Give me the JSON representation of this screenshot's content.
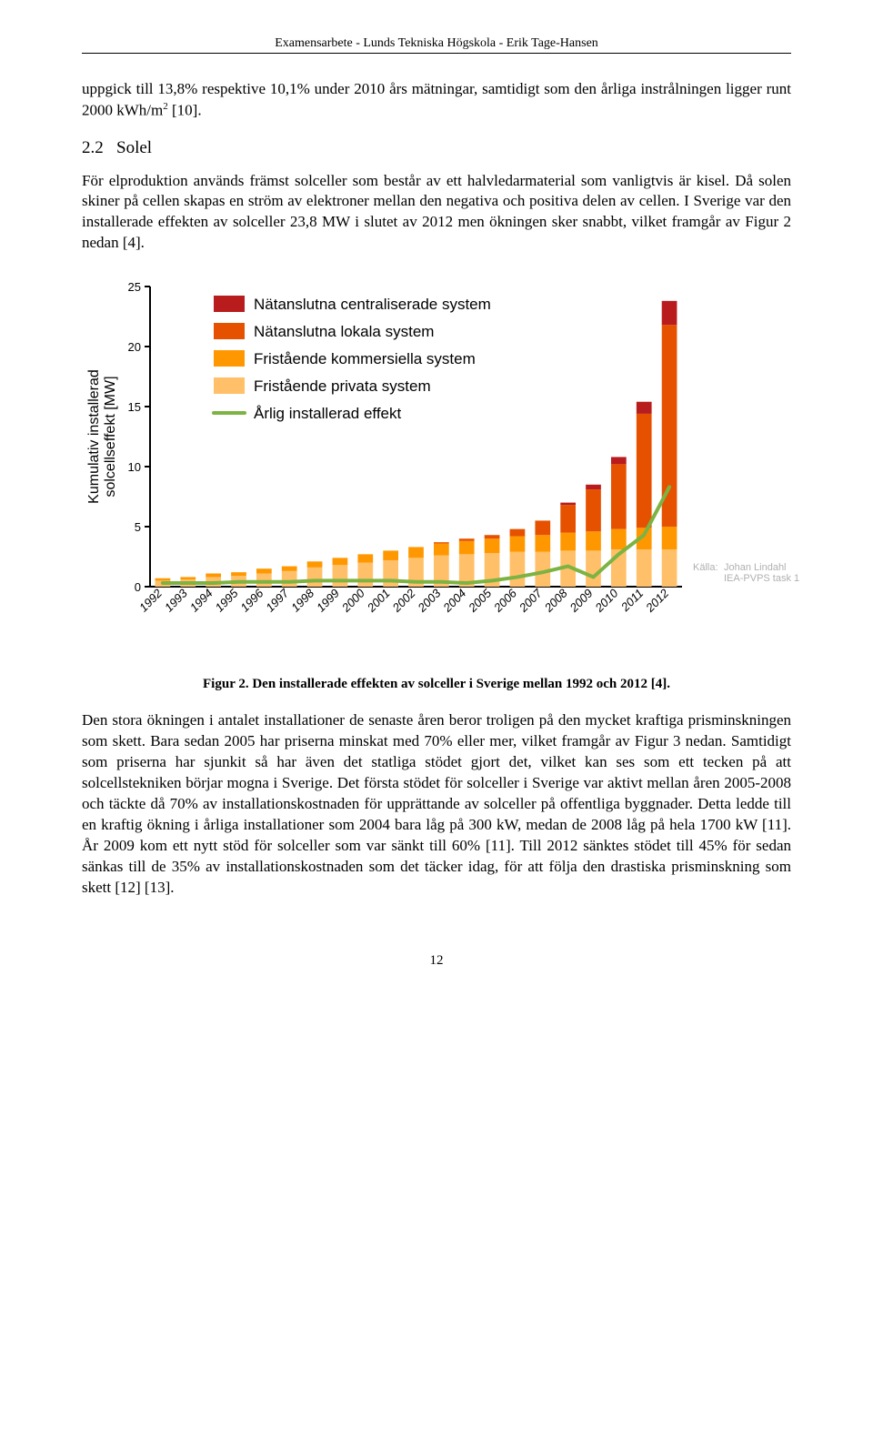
{
  "header": "Examensarbete - Lunds Tekniska Högskola - Erik Tage-Hansen",
  "para1_a": "uppgick till 13,8% respektive 10,1% under 2010 års mätningar, samtidigt som den årliga instrålningen ligger runt 2000 kWh/m",
  "para1_sup": "2",
  "para1_b": " [10].",
  "section_num": "2.2",
  "section_title": "Solel",
  "para2": "För elproduktion används främst solceller som består av ett halvledarmaterial som vanligtvis är kisel. Då solen skiner på cellen skapas en ström av elektroner mellan den negativa och positiva delen av cellen. I Sverige var den installerade effekten av solceller 23,8 MW i slutet av 2012 men ökningen sker snabbt, vilket framgår av Figur 2 nedan [4].",
  "chart": {
    "type": "stacked-bar-with-line",
    "y_axis_label": "Kumulativ installerad\nsolcellseffekt [MW]",
    "categories": [
      "1992",
      "1993",
      "1994",
      "1995",
      "1996",
      "1997",
      "1998",
      "1999",
      "2000",
      "2001",
      "2002",
      "2003",
      "2004",
      "2005",
      "2006",
      "2007",
      "2008",
      "2009",
      "2010",
      "2011",
      "2012"
    ],
    "legend": [
      {
        "label": "Nätanslutna centraliserade system",
        "color": "#b91c1c"
      },
      {
        "label": "Nätanslutna lokala system",
        "color": "#e65100"
      },
      {
        "label": "Fristående kommersiella system",
        "color": "#ff9800"
      },
      {
        "label": "Fristående privata system",
        "color": "#ffc069"
      },
      {
        "label": "Årlig installerad effekt",
        "color": "#7cb342",
        "kind": "line"
      }
    ],
    "series": {
      "privata": [
        0.5,
        0.6,
        0.8,
        0.9,
        1.1,
        1.3,
        1.6,
        1.8,
        2.0,
        2.2,
        2.4,
        2.6,
        2.7,
        2.8,
        2.9,
        2.9,
        3.0,
        3.0,
        3.1,
        3.1,
        3.1
      ],
      "kommersiella": [
        0.2,
        0.2,
        0.3,
        0.3,
        0.4,
        0.4,
        0.5,
        0.6,
        0.7,
        0.8,
        0.9,
        1.0,
        1.1,
        1.2,
        1.3,
        1.4,
        1.5,
        1.6,
        1.7,
        1.8,
        1.9
      ],
      "lokala": [
        0,
        0,
        0,
        0,
        0,
        0,
        0,
        0,
        0,
        0,
        0,
        0.1,
        0.2,
        0.3,
        0.6,
        1.2,
        2.3,
        3.5,
        5.4,
        9.5,
        16.8
      ],
      "centraliserade": [
        0,
        0,
        0,
        0,
        0,
        0,
        0,
        0,
        0,
        0,
        0,
        0,
        0,
        0,
        0,
        0,
        0.2,
        0.4,
        0.6,
        1.0,
        2.0
      ]
    },
    "line_annual": [
      0.3,
      0.3,
      0.3,
      0.4,
      0.4,
      0.4,
      0.5,
      0.5,
      0.5,
      0.5,
      0.4,
      0.4,
      0.3,
      0.5,
      0.8,
      1.2,
      1.7,
      0.8,
      2.7,
      4.3,
      8.3
    ],
    "y_ticks": [
      0,
      5,
      10,
      15,
      20,
      25
    ],
    "ylim": [
      0,
      25
    ],
    "background_color": "#ffffff",
    "axis_color": "#000000",
    "label_fontsize": 16,
    "legend_fontsize": 17,
    "tick_fontsize": 13,
    "source_label": "Källa:",
    "source_value": "Johan Lindahl\nIEA-PVPS task 1",
    "source_color": "#b0b0b0",
    "bar_width_ratio": 0.6,
    "line_width": 4
  },
  "caption": "Figur 2. Den installerade effekten av solceller i Sverige mellan 1992 och 2012 [4].",
  "para3": "Den stora ökningen i antalet installationer de senaste åren beror troligen på den mycket kraftiga prisminskningen som skett. Bara sedan 2005 har priserna minskat med 70% eller mer, vilket framgår av Figur 3 nedan. Samtidigt som priserna har sjunkit så har även det statliga stödet gjort det, vilket kan ses som ett tecken på att solcellstekniken börjar mogna i Sverige. Det första stödet för solceller i Sverige var aktivt mellan åren 2005-2008 och täckte då 70% av installationskostnaden för upprättande av solceller på offentliga byggnader. Detta ledde till en kraftig ökning i årliga installationer som 2004 bara låg på 300 kW, medan de 2008 låg på hela 1700 kW [11]. År 2009 kom ett nytt stöd för solceller som var sänkt till 60% [11]. Till 2012 sänktes stödet till 45% för sedan sänkas till de 35% av installationskostnaden som det täcker idag, för att följa den drastiska prisminskning som skett [12] [13].",
  "page_number": "12"
}
